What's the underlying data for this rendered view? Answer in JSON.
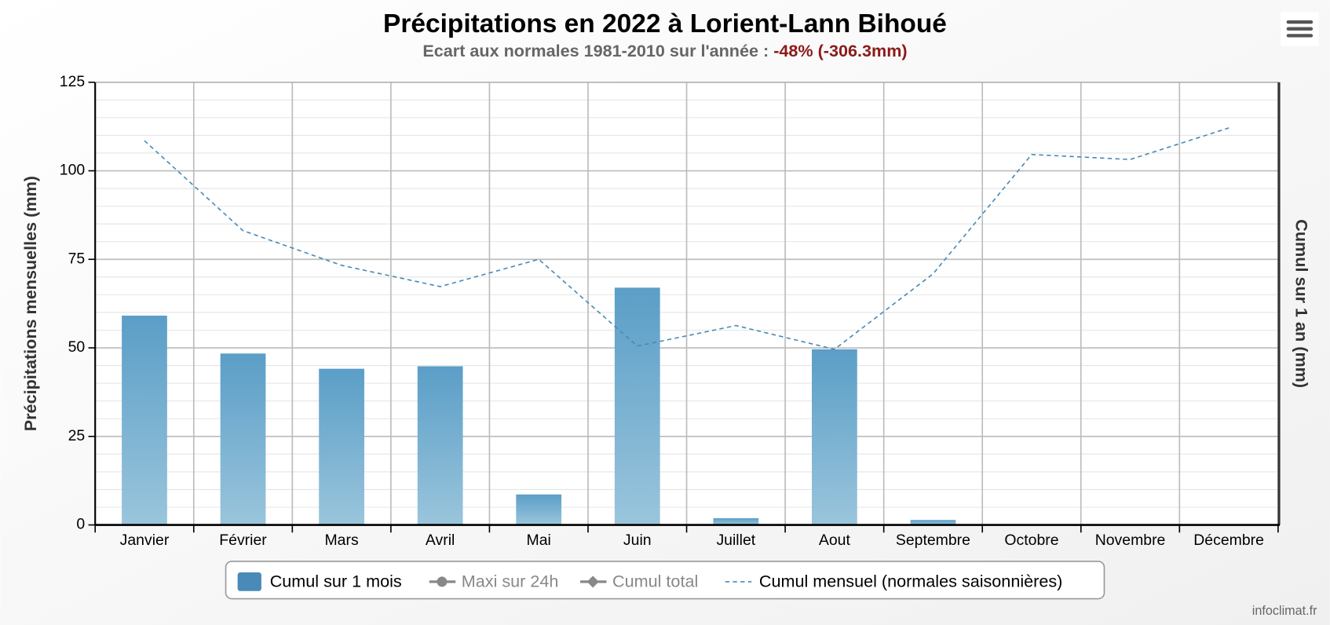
{
  "chart_data": {
    "type": "bar",
    "title": "Précipitations en 2022 à Lorient-Lann Bihoué",
    "subtitle": "Ecart aux normales 1981-2010 sur l'année : ",
    "subtitle_highlight": "-48% (-306.3mm)",
    "y_label": "Précipitations mensuelles (mm)",
    "y2_label": "Cumul sur 1 an (mm)",
    "credit": "infoclimat.fr",
    "categories": [
      "Janvier",
      "Février",
      "Mars",
      "Avril",
      "Mai",
      "Juin",
      "Juillet",
      "Aout",
      "Septembre",
      "Octobre",
      "Novembre",
      "Décembre"
    ],
    "series": [
      {
        "name": "Cumul sur 1 mois",
        "type": "bar",
        "color": "#5b9ec7",
        "visible": true,
        "values": [
          59.1,
          48.4,
          44.1,
          44.8,
          8.6,
          67.0,
          1.9,
          49.6,
          1.4,
          null,
          null,
          null
        ]
      },
      {
        "name": "Maxi sur 24h",
        "type": "line",
        "marker": "circle",
        "color": "#888888",
        "visible": false,
        "values": [
          null,
          null,
          null,
          null,
          null,
          null,
          null,
          null,
          null,
          null,
          null,
          null
        ]
      },
      {
        "name": "Cumul total",
        "type": "line",
        "marker": "diamond",
        "color": "#888888",
        "visible": false,
        "values": [
          null,
          null,
          null,
          null,
          null,
          null,
          null,
          null,
          null,
          null,
          null,
          null
        ]
      },
      {
        "name": "Cumul mensuel (normales saisonnières)",
        "type": "line",
        "dashed": true,
        "color": "#4a8ab5",
        "visible": true,
        "values": [
          108.5,
          83.1,
          73.3,
          67.3,
          75.0,
          50.5,
          56.3,
          49.6,
          70.9,
          104.6,
          103.2,
          112.1
        ]
      }
    ],
    "ylim": [
      0,
      125
    ],
    "yticks": [
      0,
      25,
      50,
      75,
      100,
      125
    ],
    "yminor": [
      5,
      10,
      15,
      20,
      30,
      35,
      40,
      45,
      55,
      60,
      65,
      70,
      80,
      85,
      90,
      95,
      105,
      110,
      115,
      120
    ],
    "grid": true
  }
}
